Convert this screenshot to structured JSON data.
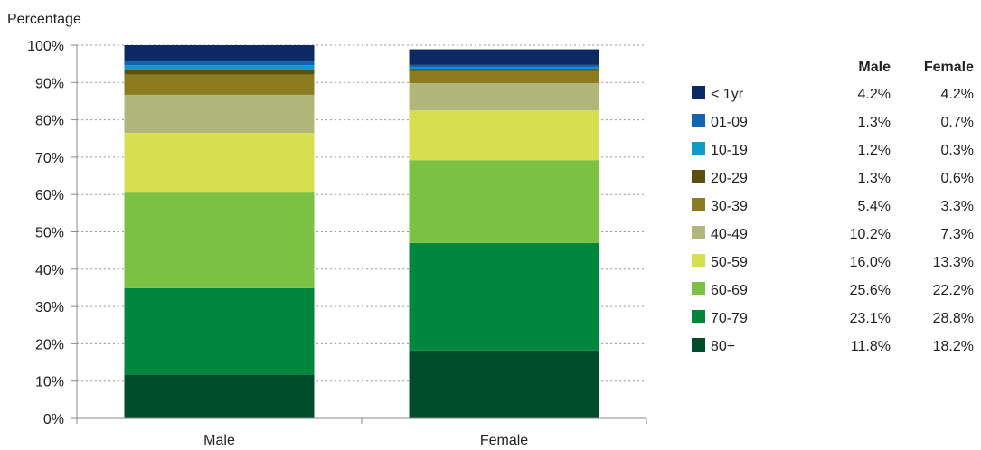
{
  "chart_data": {
    "type": "bar",
    "stacked": true,
    "ylabel": "Percentage",
    "ylim": [
      0,
      100
    ],
    "yticks": [
      "0%",
      "10%",
      "20%",
      "30%",
      "40%",
      "50%",
      "60%",
      "70%",
      "80%",
      "90%",
      "100%"
    ],
    "grid": "horizontal dotted",
    "categories": [
      "Male",
      "Female"
    ],
    "legend_placement": "right",
    "table_headers": [
      "Male",
      "Female"
    ],
    "series": [
      {
        "name": "80+",
        "color": "#004d2c",
        "values": [
          11.8,
          18.2
        ],
        "labels": [
          "11.8%",
          "18.2%"
        ]
      },
      {
        "name": "70-79",
        "color": "#00873e",
        "values": [
          23.1,
          28.8
        ],
        "labels": [
          "23.1%",
          "28.8%"
        ]
      },
      {
        "name": "60-69",
        "color": "#7bc143",
        "values": [
          25.6,
          22.2
        ],
        "labels": [
          "25.6%",
          "22.2%"
        ]
      },
      {
        "name": "50-59",
        "color": "#d6e04f",
        "values": [
          16.0,
          13.3
        ],
        "labels": [
          "16.0%",
          "13.3%"
        ]
      },
      {
        "name": "40-49",
        "color": "#b1b77b",
        "values": [
          10.2,
          7.3
        ],
        "labels": [
          "10.2%",
          "7.3%"
        ]
      },
      {
        "name": "30-39",
        "color": "#8c7b1f",
        "values": [
          5.4,
          3.3
        ],
        "labels": [
          "5.4%",
          "3.3%"
        ]
      },
      {
        "name": "20-29",
        "color": "#5c5010",
        "values": [
          1.3,
          0.6
        ],
        "labels": [
          "1.3%",
          "0.6%"
        ]
      },
      {
        "name": "10-19",
        "color": "#0e9ccf",
        "values": [
          1.2,
          0.3
        ],
        "labels": [
          "1.2%",
          "0.3%"
        ]
      },
      {
        "name": "01-09",
        "color": "#0f65b3",
        "values": [
          1.3,
          0.7
        ],
        "labels": [
          "1.3%",
          "0.7%"
        ]
      },
      {
        "name": "< 1yr",
        "color": "#0b2a63",
        "values": [
          4.2,
          4.2
        ],
        "labels": [
          "4.2%",
          "4.2%"
        ]
      }
    ]
  }
}
